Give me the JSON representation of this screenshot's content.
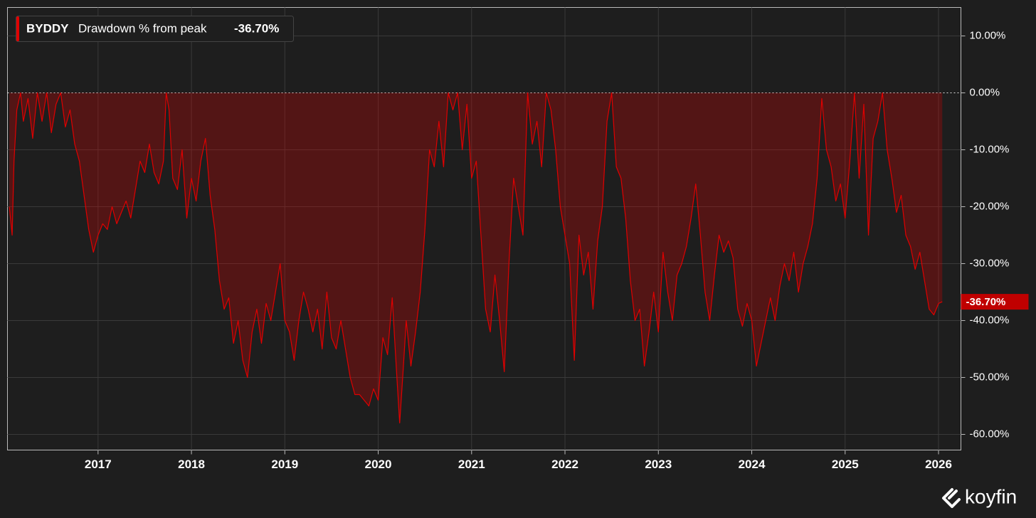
{
  "chart_data": {
    "type": "area",
    "title": "Drawdown % from peak",
    "watermark": "koyfin",
    "current": {
      "value": -36.7,
      "label": "-36.70%"
    },
    "xlim": [
      2016.03,
      2026.24
    ],
    "xticks": [
      2017,
      2018,
      2019,
      2020,
      2021,
      2022,
      2023,
      2024,
      2025,
      2026
    ],
    "ylim": [
      -62.75,
      15
    ],
    "yticks": [
      {
        "value": 10,
        "label": "10.00%"
      },
      {
        "value": 0,
        "label": "0.00%"
      },
      {
        "value": -10,
        "label": "-10.00%"
      },
      {
        "value": -20,
        "label": "-20.00%"
      },
      {
        "value": -30,
        "label": "-30.00%"
      },
      {
        "value": -40,
        "label": "-40.00%"
      },
      {
        "value": -50,
        "label": "-50.00%"
      },
      {
        "value": -60,
        "label": "-60.00%"
      }
    ],
    "grid": true,
    "x": [
      2016.05,
      2016.08,
      2016.1,
      2016.13,
      2016.17,
      2016.2,
      2016.25,
      2016.3,
      2016.35,
      2016.4,
      2016.45,
      2016.5,
      2016.55,
      2016.6,
      2016.65,
      2016.7,
      2016.75,
      2016.8,
      2016.85,
      2016.9,
      2016.95,
      2017.0,
      2017.05,
      2017.1,
      2017.15,
      2017.2,
      2017.25,
      2017.3,
      2017.35,
      2017.4,
      2017.45,
      2017.5,
      2017.55,
      2017.6,
      2017.65,
      2017.7,
      2017.73,
      2017.76,
      2017.8,
      2017.85,
      2017.9,
      2017.95,
      2018.0,
      2018.05,
      2018.1,
      2018.15,
      2018.2,
      2018.25,
      2018.3,
      2018.35,
      2018.4,
      2018.45,
      2018.5,
      2018.55,
      2018.6,
      2018.65,
      2018.7,
      2018.75,
      2018.8,
      2018.85,
      2018.9,
      2018.95,
      2019.0,
      2019.05,
      2019.1,
      2019.15,
      2019.2,
      2019.25,
      2019.3,
      2019.35,
      2019.4,
      2019.45,
      2019.5,
      2019.55,
      2019.6,
      2019.65,
      2019.7,
      2019.75,
      2019.8,
      2019.85,
      2019.9,
      2019.95,
      2020.0,
      2020.05,
      2020.1,
      2020.15,
      2020.2,
      2020.23,
      2020.27,
      2020.3,
      2020.35,
      2020.4,
      2020.45,
      2020.5,
      2020.55,
      2020.6,
      2020.65,
      2020.7,
      2020.75,
      2020.8,
      2020.85,
      2020.9,
      2020.95,
      2021.0,
      2021.05,
      2021.1,
      2021.15,
      2021.2,
      2021.25,
      2021.3,
      2021.35,
      2021.4,
      2021.45,
      2021.5,
      2021.55,
      2021.6,
      2021.65,
      2021.7,
      2021.75,
      2021.8,
      2021.85,
      2021.9,
      2021.95,
      2022.0,
      2022.05,
      2022.1,
      2022.15,
      2022.2,
      2022.25,
      2022.3,
      2022.35,
      2022.4,
      2022.45,
      2022.5,
      2022.55,
      2022.6,
      2022.65,
      2022.7,
      2022.75,
      2022.8,
      2022.85,
      2022.9,
      2022.95,
      2023.0,
      2023.05,
      2023.1,
      2023.15,
      2023.2,
      2023.25,
      2023.3,
      2023.35,
      2023.4,
      2023.45,
      2023.5,
      2023.55,
      2023.6,
      2023.65,
      2023.7,
      2023.75,
      2023.8,
      2023.85,
      2023.9,
      2023.95,
      2024.0,
      2024.05,
      2024.1,
      2024.15,
      2024.2,
      2024.25,
      2024.3,
      2024.35,
      2024.4,
      2024.45,
      2024.5,
      2024.55,
      2024.6,
      2024.65,
      2024.7,
      2024.75,
      2024.8,
      2024.85,
      2024.9,
      2024.95,
      2025.0,
      2025.05,
      2025.1,
      2025.15,
      2025.2,
      2025.25,
      2025.3,
      2025.35,
      2025.4,
      2025.45,
      2025.5,
      2025.55,
      2025.6,
      2025.65,
      2025.7,
      2025.75,
      2025.8,
      2025.85,
      2025.9,
      2025.95,
      2026.0,
      2026.04
    ],
    "series": [
      {
        "name": "BYDDY",
        "color": "#e00000",
        "values": [
          -20,
          -25,
          -12,
          -3,
          0,
          -5,
          -1,
          -8,
          0,
          -5,
          0,
          -7,
          -2,
          0,
          -6,
          -3,
          -9,
          -12,
          -18,
          -24,
          -28,
          -25,
          -23,
          -24,
          -20,
          -23,
          -21,
          -19,
          -22,
          -17,
          -12,
          -14,
          -9,
          -14,
          -16,
          -12,
          0,
          -3,
          -15,
          -17,
          -10,
          -22,
          -15,
          -19,
          -12,
          -8,
          -18,
          -24,
          -33,
          -38,
          -36,
          -44,
          -40,
          -47,
          -50,
          -42,
          -38,
          -44,
          -37,
          -40,
          -35,
          -30,
          -40,
          -42,
          -47,
          -40,
          -35,
          -38,
          -42,
          -38,
          -45,
          -35,
          -43,
          -45,
          -40,
          -45,
          -50,
          -53,
          -53,
          -54,
          -55,
          -52,
          -54,
          -43,
          -46,
          -36,
          -50,
          -58,
          -48,
          -40,
          -48,
          -42,
          -35,
          -24,
          -10,
          -13,
          -5,
          -13,
          0,
          -3,
          0,
          -10,
          -2,
          -15,
          -12,
          -25,
          -38,
          -42,
          -32,
          -40,
          -49,
          -30,
          -15,
          -20,
          -25,
          0,
          -9,
          -5,
          -13,
          0,
          -3,
          -10,
          -20,
          -25,
          -30,
          -47,
          -25,
          -32,
          -28,
          -38,
          -26,
          -20,
          -5,
          0,
          -13,
          -15,
          -22,
          -33,
          -40,
          -38,
          -48,
          -42,
          -35,
          -42,
          -28,
          -35,
          -40,
          -32,
          -30,
          -27,
          -22,
          -16,
          -25,
          -35,
          -40,
          -32,
          -25,
          -28,
          -26,
          -29,
          -38,
          -41,
          -37,
          -40,
          -48,
          -44,
          -40,
          -36,
          -40,
          -34,
          -30,
          -33,
          -28,
          -35,
          -30,
          -27,
          -23,
          -15,
          -1,
          -10,
          -13,
          -19,
          -16,
          -22,
          -12,
          0,
          -15,
          -2,
          -25,
          -8,
          -5,
          0,
          -10,
          -15,
          -21,
          -18,
          -25,
          -27,
          -31,
          -28,
          -33,
          -38,
          -39,
          -37,
          -36.7
        ]
      }
    ]
  }
}
